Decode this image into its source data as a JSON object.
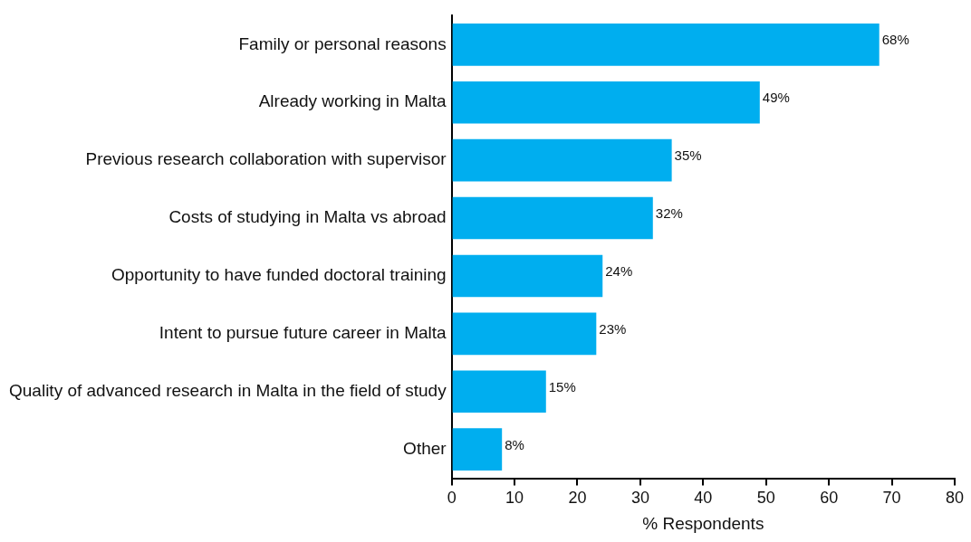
{
  "chart_data": {
    "type": "bar",
    "orientation": "horizontal",
    "xlabel": "% Respondents",
    "categories": [
      "Family or personal reasons",
      "Already working in Malta",
      "Previous research collaboration with supervisor",
      "Costs of studying in Malta vs abroad",
      "Opportunity to have funded doctoral training",
      "Intent to pursue future career in Malta",
      "Quality of advanced research in Malta in the field of study",
      "Other"
    ],
    "values": [
      68,
      49,
      35,
      32,
      24,
      23,
      15,
      8
    ],
    "value_labels": [
      "68%",
      "49%",
      "35%",
      "32%",
      "24%",
      "23%",
      "15%",
      "8%"
    ],
    "color": "#00aeef",
    "xlim": [
      0,
      80
    ],
    "xticks": [
      0,
      10,
      20,
      30,
      40,
      50,
      60,
      70,
      80
    ],
    "grid": false,
    "legend": false
  }
}
